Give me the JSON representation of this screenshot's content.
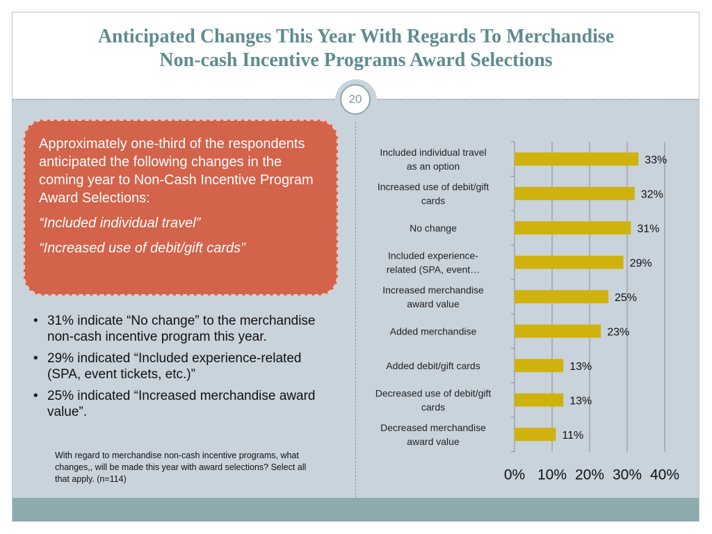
{
  "slide": {
    "title_line1": "Anticipated Changes This Year With Regards To  Merchandise",
    "title_line2": "Non-cash Incentive Programs Award Selections",
    "page_number": "20"
  },
  "callout": {
    "text": "Approximately one-third of  the respondents anticipated the following changes in the coming year to Non-Cash Incentive Program Award Selections:",
    "quote1": "“Included individual travel”",
    "quote2": "“Increased use of debit/gift cards”"
  },
  "bullets": [
    "31% indicate “No change” to the merchandise non-cash incentive program this year.",
    "29% indicated “Included experience-related (SPA, event tickets, etc.)”",
    "25% indicated “Increased merchandise award value”."
  ],
  "question_note": "With regard to merchandise non-cash incentive programs, what changes,, will be made this year with award selections? Select all that apply. (n=114)",
  "colors": {
    "bar": "#cfb20e",
    "callout": "#d3634a",
    "title": "#5f8c8e",
    "background": "#c9d3dc",
    "footer": "#8dabae"
  },
  "chart_data": {
    "type": "bar",
    "orientation": "horizontal",
    "categories": [
      [
        "Included individual travel",
        "as an option"
      ],
      [
        "Increased use of debit/gift",
        "cards"
      ],
      [
        "No change"
      ],
      [
        "Included experience-",
        "related (SPA, event…"
      ],
      [
        "Increased merchandise",
        "award value"
      ],
      [
        "Added merchandise"
      ],
      [
        "Added debit/gift cards"
      ],
      [
        "Decreased use of debit/gift",
        "cards"
      ],
      [
        "Decreased merchandise",
        "award value"
      ]
    ],
    "values": [
      33,
      32,
      31,
      29,
      25,
      23,
      13,
      13,
      11
    ],
    "value_labels": [
      "33%",
      "32%",
      "31%",
      "29%",
      "25%",
      "23%",
      "13%",
      "13%",
      "11%"
    ],
    "xlim": [
      0,
      40
    ],
    "x_ticks": [
      "0%",
      "10%",
      "20%",
      "30%",
      "40%"
    ],
    "grid": true
  }
}
